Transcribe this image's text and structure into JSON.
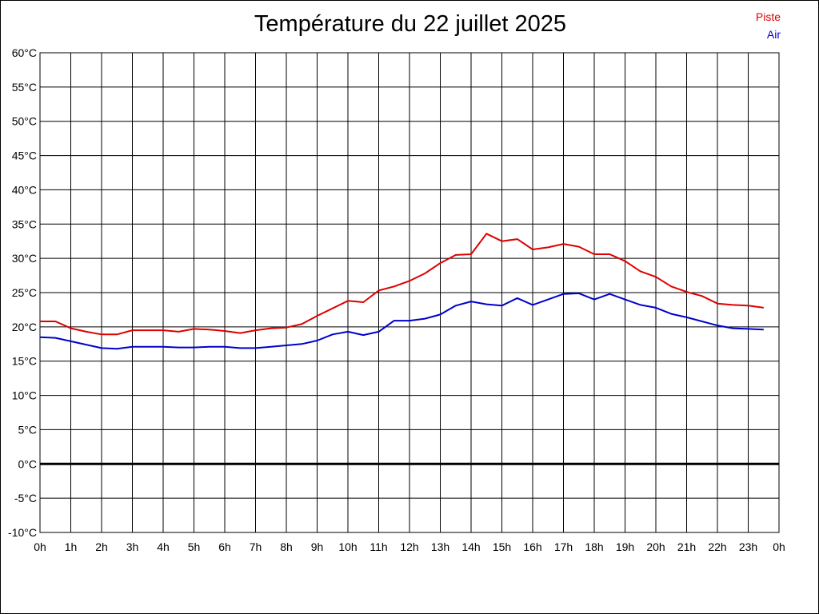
{
  "chart_data": {
    "type": "line",
    "title": "Température du 22 juillet 2025",
    "ylim": [
      -10,
      60
    ],
    "y_ticks": [
      "60°C",
      "55°C",
      "50°C",
      "45°C",
      "40°C",
      "35°C",
      "30°C",
      "25°C",
      "20°C",
      "15°C",
      "10°C",
      "5°C",
      "0°C",
      "-5°C",
      "-10°C"
    ],
    "x_ticks": [
      "0h",
      "1h",
      "2h",
      "3h",
      "4h",
      "5h",
      "6h",
      "7h",
      "8h",
      "9h",
      "10h",
      "11h",
      "12h",
      "13h",
      "14h",
      "15h",
      "16h",
      "17h",
      "18h",
      "19h",
      "20h",
      "21h",
      "22h",
      "23h",
      "0h"
    ],
    "xlim": [
      0,
      24
    ],
    "grid": true,
    "legend_position": "top-right",
    "x": [
      0,
      0.5,
      1,
      1.5,
      2,
      2.5,
      3,
      3.5,
      4,
      4.5,
      5,
      5.5,
      6,
      6.5,
      7,
      7.5,
      8,
      8.5,
      9,
      9.5,
      10,
      10.5,
      11,
      11.5,
      12,
      12.5,
      13,
      13.5,
      14,
      14.5,
      15,
      15.5,
      16,
      16.5,
      17,
      17.5,
      18,
      18.5,
      19,
      19.5,
      20,
      20.5,
      21,
      21.5,
      22,
      22.5,
      23,
      23.5
    ],
    "series": [
      {
        "name": "Piste",
        "color": "#dd0000",
        "values": [
          20.8,
          20.8,
          19.8,
          19.3,
          18.9,
          18.9,
          19.5,
          19.5,
          19.5,
          19.3,
          19.7,
          19.6,
          19.4,
          19.1,
          19.5,
          19.8,
          19.9,
          20.4,
          21.6,
          22.7,
          23.8,
          23.6,
          25.3,
          25.9,
          26.7,
          27.8,
          29.3,
          30.5,
          30.6,
          33.6,
          32.5,
          32.8,
          31.3,
          31.6,
          32.1,
          31.7,
          30.6,
          30.6,
          29.6,
          28.1,
          27.3,
          25.9,
          25.1,
          24.5,
          23.4,
          23.2,
          23.1,
          22.8
        ]
      },
      {
        "name": "Air",
        "color": "#0000cc",
        "values": [
          18.5,
          18.4,
          17.9,
          17.4,
          16.9,
          16.8,
          17.1,
          17.1,
          17.1,
          17.0,
          17.0,
          17.1,
          17.1,
          16.9,
          16.9,
          17.1,
          17.3,
          17.5,
          18.0,
          18.9,
          19.3,
          18.8,
          19.3,
          20.9,
          20.9,
          21.2,
          21.8,
          23.1,
          23.7,
          23.3,
          23.1,
          24.2,
          23.2,
          24.0,
          24.8,
          24.9,
          24.0,
          24.8,
          24.0,
          23.2,
          22.8,
          21.9,
          21.4,
          20.8,
          20.2,
          19.8,
          19.7,
          19.6
        ]
      }
    ]
  }
}
